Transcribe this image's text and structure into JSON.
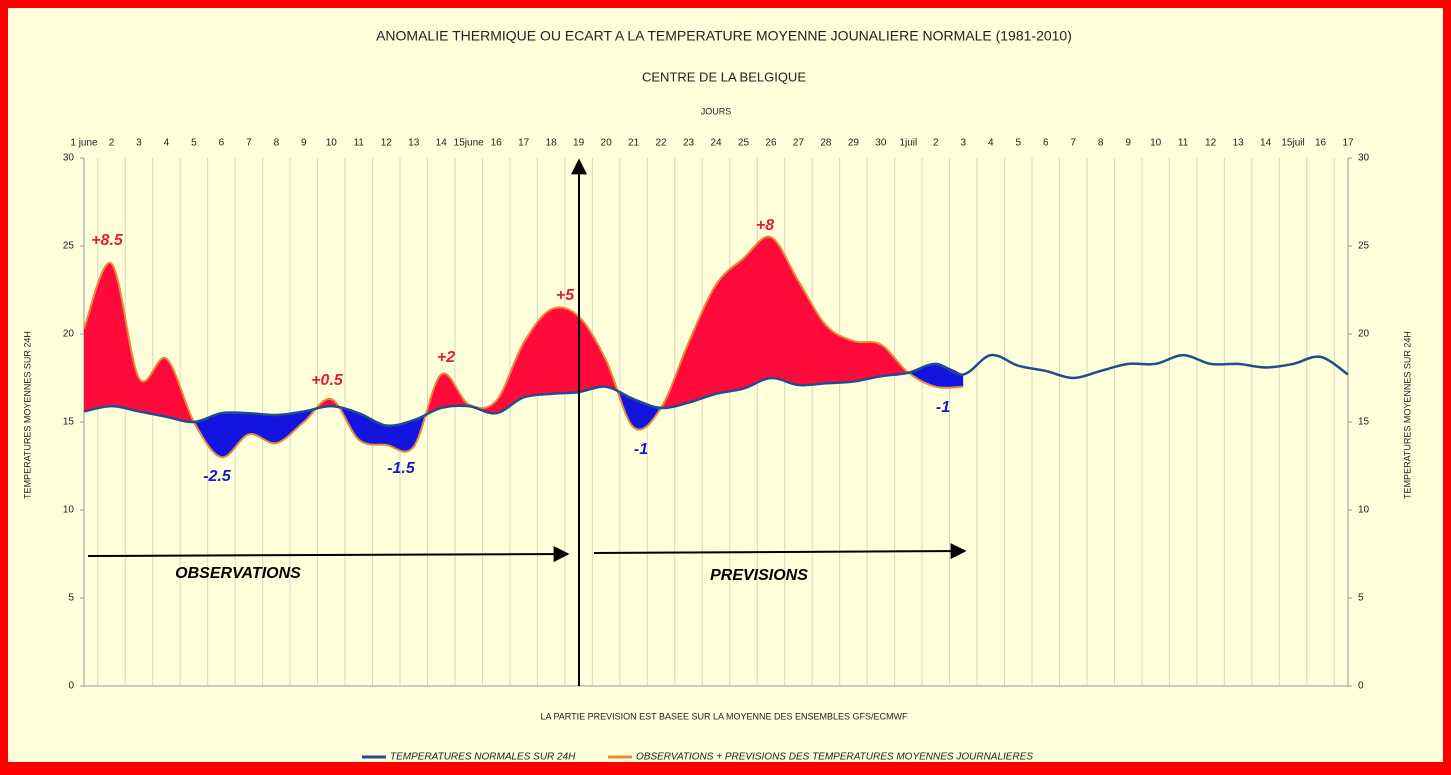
{
  "chart_data": {
    "type": "line",
    "title": "ANOMALIE THERMIQUE OU ECART A LA TEMPERATURE MOYENNE JOUNALIERE NORMALE (1981-2010)",
    "subtitle": "CENTRE DE LA BELGIQUE",
    "x_label": "JOURS",
    "y_label": "TEMPERATURES MOYENNES SUR 24H",
    "y2_label": "TEMPERATURES MOYENNES SUR 24H",
    "note": "LA PARTIE PREVISION EST BASEE SUR LA MOYENNE DES ENSEMBLES GFS/ECMWF",
    "categories": [
      "1 june",
      "2",
      "3",
      "4",
      "5",
      "6",
      "7",
      "8",
      "9",
      "10",
      "11",
      "12",
      "13",
      "14",
      "15june",
      "16",
      "17",
      "18",
      "19",
      "20",
      "21",
      "22",
      "23",
      "24",
      "25",
      "26",
      "27",
      "28",
      "29",
      "30",
      "1juil",
      "2",
      "3",
      "4",
      "5",
      "6",
      "7",
      "8",
      "9",
      "10",
      "11",
      "12",
      "13",
      "14",
      "15juil",
      "16",
      "17"
    ],
    "series": [
      {
        "name": "TEMPERATURES NORMALES SUR 24H",
        "color": "#1f4e8c",
        "values": [
          15.6,
          15.9,
          15.6,
          15.3,
          15.0,
          15.5,
          15.5,
          15.4,
          15.6,
          15.9,
          15.5,
          14.8,
          15.1,
          15.8,
          15.9,
          15.5,
          16.4,
          16.6,
          16.7,
          17.0,
          16.3,
          15.8,
          16.1,
          16.6,
          16.9,
          17.5,
          17.1,
          17.2,
          17.3,
          17.6,
          17.8,
          18.3,
          17.7,
          18.8,
          18.2,
          17.9,
          17.5,
          17.9,
          18.3,
          18.3,
          18.8,
          18.3,
          18.3,
          18.1,
          18.3,
          18.7,
          17.7
        ]
      },
      {
        "name": "OBSERVATIONS + PREVISIONS DES TEMPERATURES MOYENNES JOURNALIERES",
        "color": "#e8883a",
        "values": [
          20.3,
          24.0,
          17.5,
          18.6,
          15.0,
          13.0,
          14.3,
          13.8,
          15.0,
          16.3,
          14.0,
          13.7,
          13.6,
          17.7,
          16.0,
          16.2,
          19.5,
          21.4,
          21.0,
          18.5,
          14.7,
          15.8,
          19.5,
          22.8,
          24.3,
          25.5,
          23.0,
          20.5,
          19.6,
          19.4,
          17.8,
          17.0,
          17.0,
          null,
          null,
          null,
          null,
          null,
          null,
          null,
          null,
          null,
          null,
          null,
          null,
          null,
          null
        ]
      }
    ],
    "above_color": "#ff0a3a",
    "below_color": "#1414e0",
    "annotations": [
      {
        "text": "+8.5",
        "color": "#e0203a"
      },
      {
        "text": "-2.5",
        "color": "#1a1ad0"
      },
      {
        "text": "+0.5",
        "color": "#e0203a"
      },
      {
        "text": "-1.5",
        "color": "#1a1ad0"
      },
      {
        "text": "+2",
        "color": "#e0203a"
      },
      {
        "text": "+5",
        "color": "#e0203a"
      },
      {
        "text": "-1",
        "color": "#1a1ad0"
      },
      {
        "text": "+8",
        "color": "#e0203a"
      },
      {
        "text": "-1",
        "color": "#1a1ad0"
      },
      {
        "text": "OBSERVATIONS",
        "color": "#000000"
      },
      {
        "text": "PREVISIONS",
        "color": "#000000"
      }
    ],
    "ylim": [
      0,
      30
    ],
    "yticks": [
      0,
      5,
      10,
      15,
      20,
      25,
      30
    ],
    "y2lim": [
      0,
      30
    ],
    "y2ticks": [
      0,
      5,
      10,
      15,
      20,
      25,
      30
    ],
    "legend": "bottom"
  }
}
